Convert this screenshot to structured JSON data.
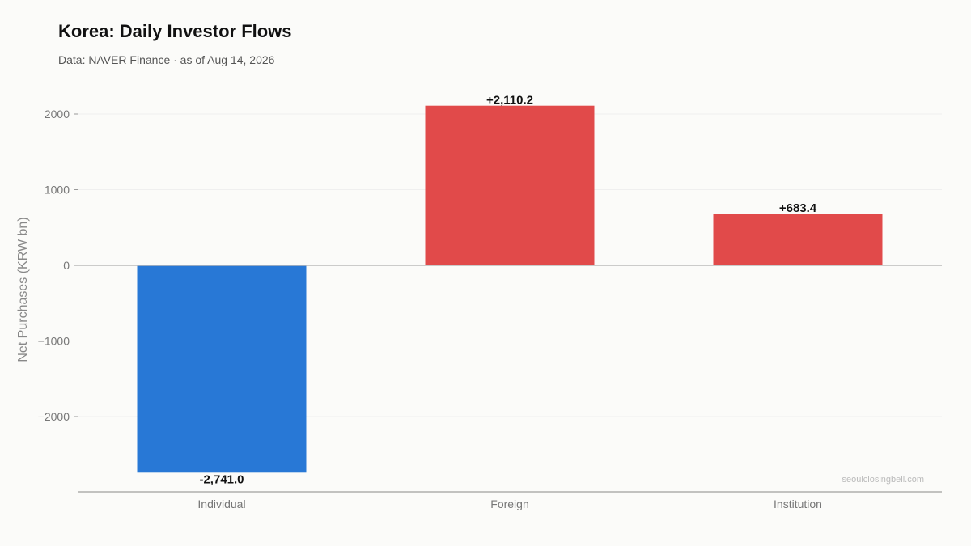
{
  "header": {
    "title": "Korea: Daily Investor Flows",
    "subtitle": "Data: NAVER Finance · as of Aug 14, 2026"
  },
  "watermark": "seoulclosingbell.com",
  "colors": {
    "negative": "#2878d6",
    "positive": "#e14a4a",
    "zero_line": "#bbbbbb",
    "grid": "#efefef",
    "baseline_axis": "#888888"
  },
  "chart_data": {
    "type": "bar",
    "title": "Korea: Daily Investor Flows",
    "subtitle": "Data: NAVER Finance · as of Aug 14, 2026",
    "xlabel": "",
    "ylabel": "Net Purchases (KRW bn)",
    "categories": [
      "Individual",
      "Foreign",
      "Institution"
    ],
    "values": [
      -2741.0,
      2110.2,
      683.4
    ],
    "data_labels": [
      "-2,741.0",
      "+2,110.2",
      "+683.4"
    ],
    "ylim": [
      -2990,
      2300
    ],
    "yticks": [
      2000,
      1000,
      0,
      -1000,
      -2000
    ],
    "ytick_labels": [
      "2000",
      "1000",
      "0",
      "−1000",
      "−2000"
    ],
    "grid": true,
    "legend": "none"
  }
}
